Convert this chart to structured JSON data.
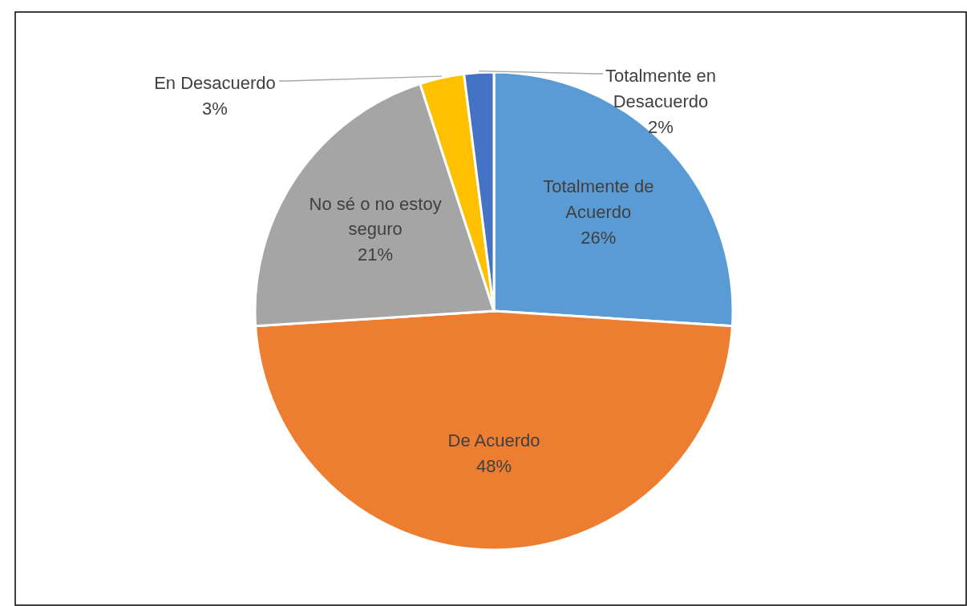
{
  "chart_data": {
    "type": "pie",
    "categories": [
      "Totalmente de Acuerdo",
      "De Acuerdo",
      "No sé o no estoy seguro",
      "En Desacuerdo",
      "Totalmente en Desacuerdo"
    ],
    "values": [
      26,
      48,
      21,
      3,
      2
    ],
    "value_labels": [
      "26%",
      "48%",
      "21%",
      "3%",
      "2%"
    ],
    "colors": [
      "#5b9bd5",
      "#ed7d31",
      "#a5a5a5",
      "#ffc000",
      "#4472c4"
    ]
  }
}
